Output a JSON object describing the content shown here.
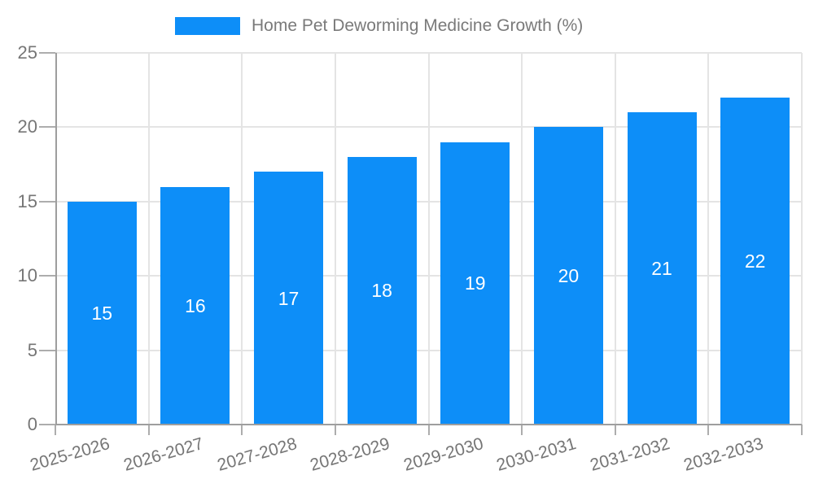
{
  "chart_data": {
    "type": "bar",
    "title": "Home Pet Deworming Medicine Growth (%)",
    "categories": [
      "2025-2026",
      "2026-2027",
      "2027-2028",
      "2028-2029",
      "2029-2030",
      "2030-2031",
      "2031-2032",
      "2032-2033"
    ],
    "values": [
      15,
      16,
      17,
      18,
      19,
      20,
      21,
      22
    ],
    "xlabel": "",
    "ylabel": "",
    "ylim": [
      0,
      25
    ],
    "yticks": [
      0,
      5,
      10,
      15,
      20,
      25
    ],
    "grid": true,
    "legend_position": "top-center",
    "bar_color": "#0d8ef8",
    "value_labels_inside_bars": true
  },
  "colors": {
    "background": "#ffffff",
    "bar": "#0d8ef8",
    "axis": "#9e9e9e",
    "grid": "#e4e4e4",
    "tick": "#adadad",
    "tick_label": "#767676",
    "title": "#7a7a7a",
    "value_label": "#ffffff"
  }
}
